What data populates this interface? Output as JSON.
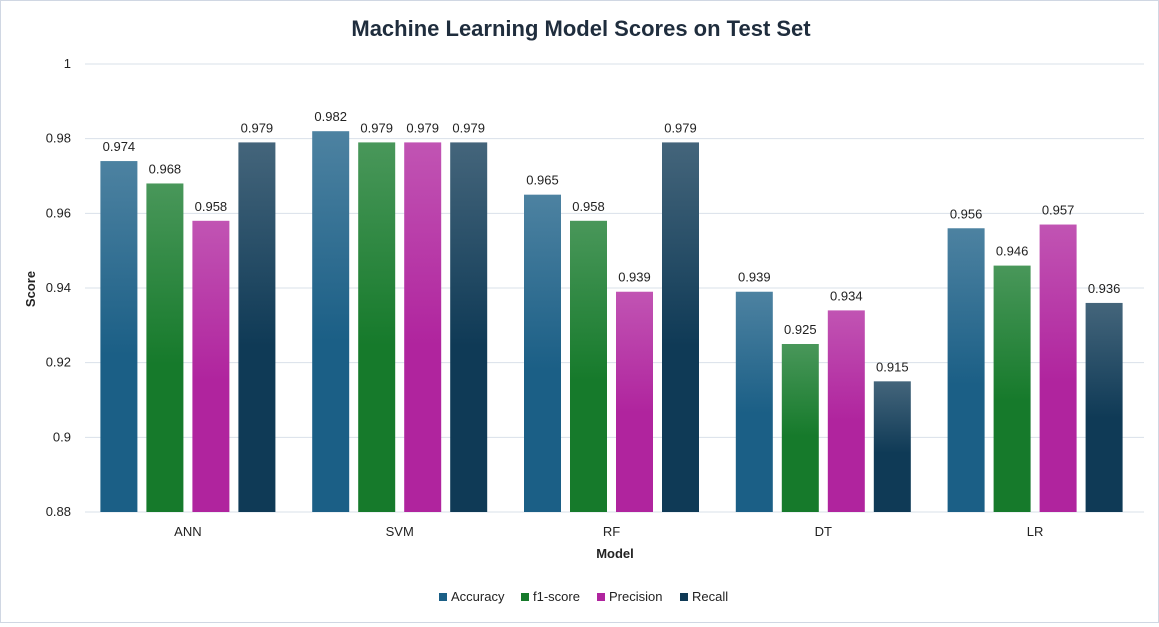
{
  "chart_data": {
    "type": "bar",
    "title": "Machine Learning Model Scores on Test Set",
    "xlabel": "Model",
    "ylabel": "Score",
    "categories": [
      "ANN",
      "SVM",
      "RF",
      "DT",
      "LR"
    ],
    "series": [
      {
        "name": "Accuracy",
        "color": "#1b5f86",
        "values": [
          0.974,
          0.982,
          0.965,
          0.939,
          0.956
        ]
      },
      {
        "name": "f1-score",
        "color": "#167a2b",
        "values": [
          0.968,
          0.979,
          0.958,
          0.925,
          0.946
        ]
      },
      {
        "name": "Precision",
        "color": "#b0249e",
        "values": [
          0.958,
          0.979,
          0.939,
          0.934,
          0.957
        ]
      },
      {
        "name": "Recall",
        "color": "#0f3a56",
        "values": [
          0.979,
          0.979,
          0.979,
          0.915,
          0.936
        ]
      }
    ],
    "ylim": [
      0.88,
      1.0
    ],
    "yticks": [
      0.88,
      0.9,
      0.92,
      0.94,
      0.96,
      0.98,
      1
    ],
    "ytick_labels": [
      "0.88",
      "0.9",
      "0.92",
      "0.94",
      "0.96",
      "0.98",
      "1"
    ],
    "data_labels": [
      [
        "0.974",
        "0.982",
        "0.965",
        "0.939",
        "0.956"
      ],
      [
        "0.968",
        "0.979",
        "0.958",
        "0.925",
        "0.946"
      ],
      [
        "0.958",
        "0.979",
        "0.939",
        "0.934",
        "0.957"
      ],
      [
        "0.979",
        "0.979",
        "0.979",
        "0.915",
        "0.936"
      ]
    ],
    "grid": true,
    "legend": "bottom"
  }
}
